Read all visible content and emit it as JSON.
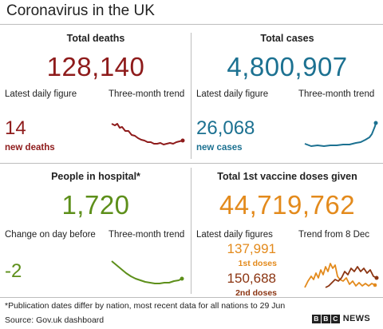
{
  "title": "Coronavirus in the UK",
  "deaths": {
    "heading": "Total deaths",
    "total": "128,140",
    "latest_label": "Latest daily figure",
    "trend_label": "Three-month trend",
    "daily_value": "14",
    "daily_label": "new deaths",
    "color": "#8e1b1b"
  },
  "cases": {
    "heading": "Total cases",
    "total": "4,800,907",
    "latest_label": "Latest daily figure",
    "trend_label": "Three-month trend",
    "daily_value": "26,068",
    "daily_label": "new cases",
    "color": "#1c7191"
  },
  "hospital": {
    "heading": "People in hospital*",
    "total": "1,720",
    "change_label": "Change on day before",
    "trend_label": "Three-month trend",
    "change_value": "-2",
    "color": "#5d8f1a"
  },
  "vaccine": {
    "heading": "Total 1st vaccine doses given",
    "total": "44,719,762",
    "latest_label": "Latest daily figures",
    "trend_label": "Trend from 8 Dec",
    "first_value": "137,991",
    "first_label": "1st doses",
    "second_value": "150,688",
    "second_label": "2nd doses",
    "first_color": "#e38a1c",
    "second_color": "#8b3411"
  },
  "footnote": "*Publication dates differ by nation, most recent data for all nations to 29 Jun",
  "source": "Source: Gov.uk dashboard",
  "brand": {
    "letters": [
      "B",
      "B",
      "C"
    ],
    "suffix": "NEWS"
  }
}
